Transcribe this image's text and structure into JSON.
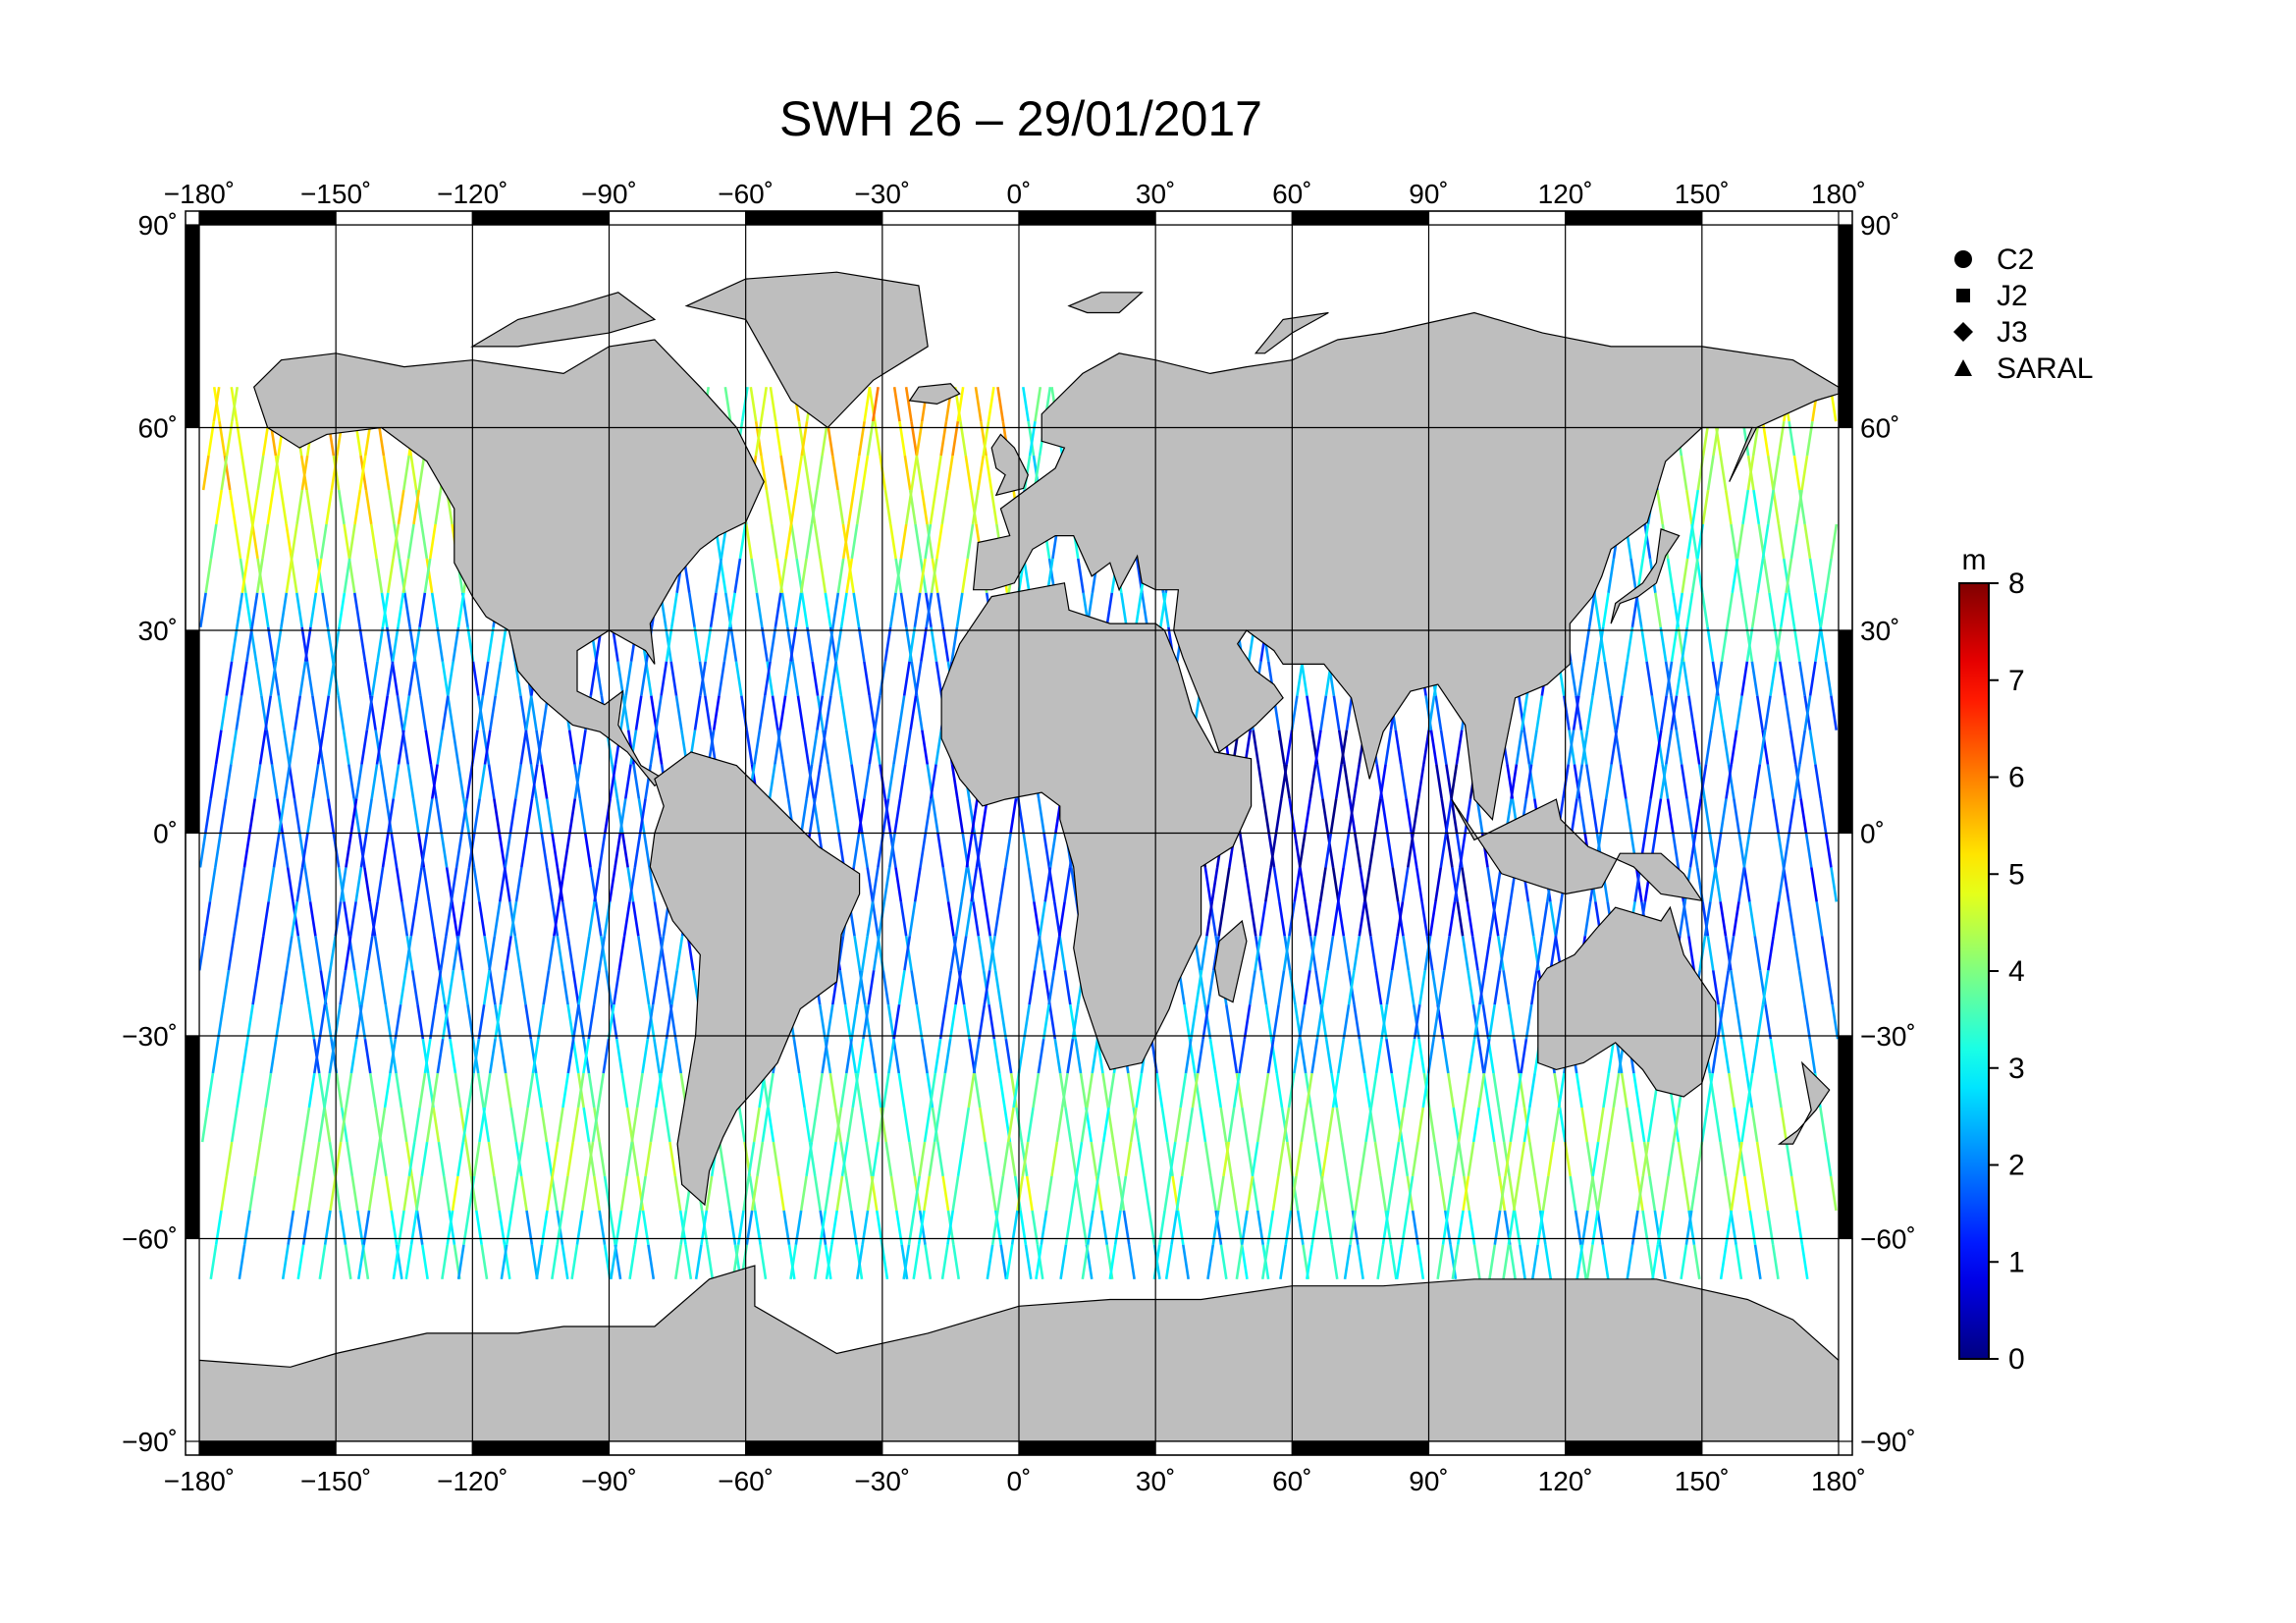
{
  "title": "SWH 26 – 29/01/2017",
  "map": {
    "lon_ticks": [
      -180,
      -150,
      -120,
      -90,
      -60,
      -30,
      0,
      30,
      60,
      90,
      120,
      150,
      180
    ],
    "lon_tick_labels": [
      "−180˚",
      "−150˚",
      "−120˚",
      "−90˚",
      "−60˚",
      "−30˚",
      "0˚",
      "30˚",
      "60˚",
      "90˚",
      "120˚",
      "150˚",
      "180˚"
    ],
    "lat_ticks": [
      90,
      60,
      30,
      0,
      -30,
      -60,
      -90
    ],
    "lat_tick_labels": [
      "90˚",
      "60˚",
      "30˚",
      "0˚",
      "−30˚",
      "−60˚",
      "−90˚"
    ],
    "lon_range": [
      -180,
      180
    ],
    "lat_range": [
      -90,
      90
    ],
    "projection": "equirectangular",
    "grid": true
  },
  "legend": {
    "placement": "top-right",
    "items": [
      {
        "label": "C2",
        "symbol": "circle"
      },
      {
        "label": "J2",
        "symbol": "square"
      },
      {
        "label": "J3",
        "symbol": "diamond"
      },
      {
        "label": "SARAL",
        "symbol": "triangle"
      }
    ]
  },
  "colorbar": {
    "unit": "m",
    "min": 0,
    "max": 8,
    "tick_labels": [
      "0",
      "1",
      "2",
      "3",
      "4",
      "5",
      "6",
      "7",
      "8"
    ],
    "colormap": "jet"
  },
  "colors": {
    "land": "#bebebe",
    "ocean": "#ffffff",
    "frame": "#000000"
  }
}
